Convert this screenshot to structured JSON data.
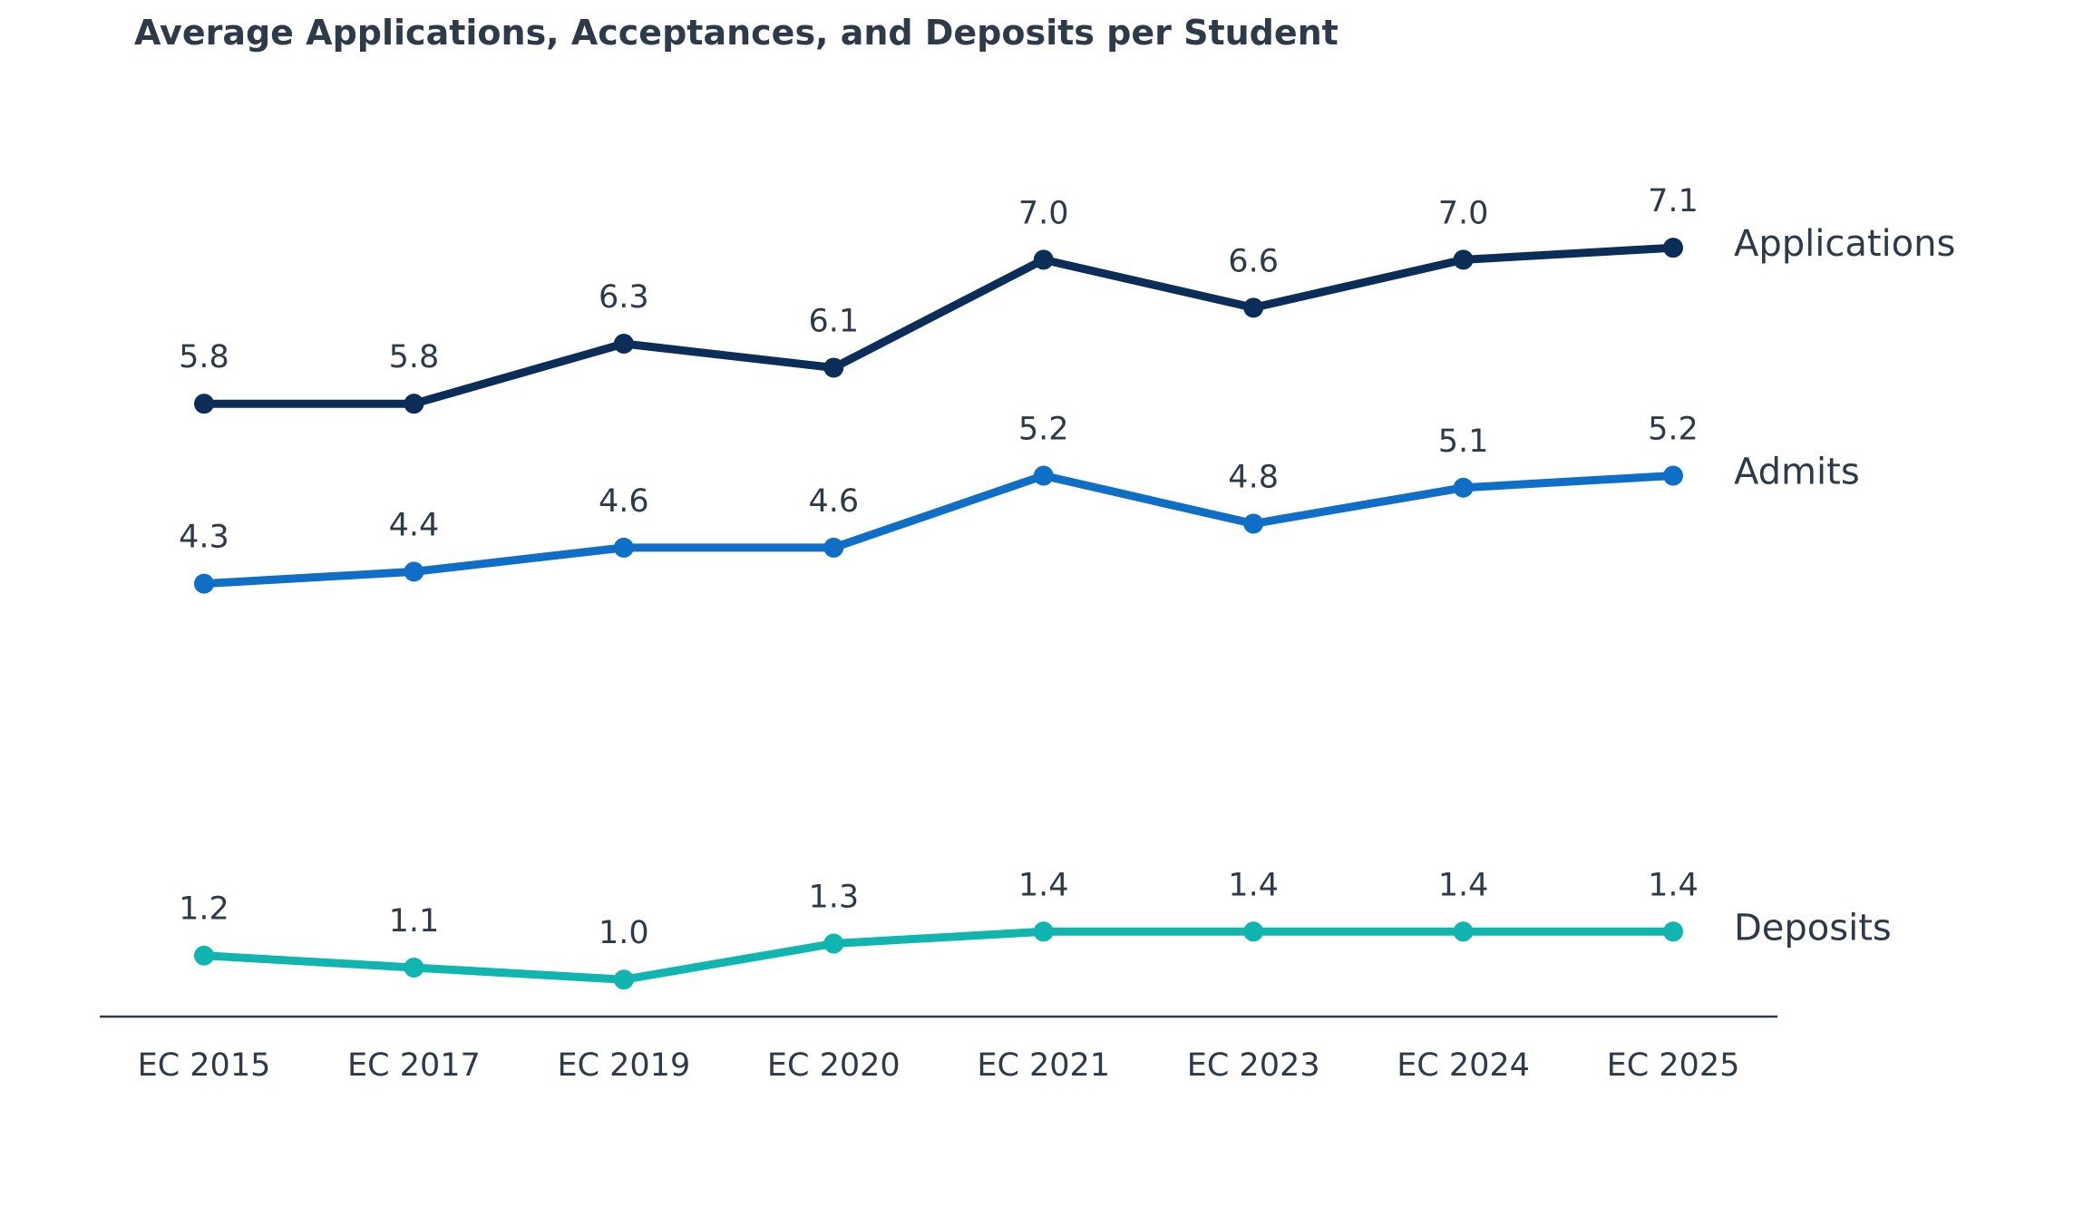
{
  "chart_data": {
    "type": "line",
    "title": "Average Applications, Acceptances, and Deposits per Student",
    "xlabel": "",
    "ylabel": "",
    "categories": [
      "EC 2015",
      "EC 2017",
      "EC 2019",
      "EC 2020",
      "EC 2021",
      "EC 2023",
      "EC 2024",
      "EC 2025"
    ],
    "ylim": [
      0,
      8
    ],
    "grid": false,
    "legend": "series labels at right end of lines",
    "series": [
      {
        "name": "Applications",
        "color": "#0b2e59",
        "values": [
          5.8,
          5.8,
          6.3,
          6.1,
          7.0,
          6.6,
          7.0,
          7.1
        ],
        "labels": [
          "5.8",
          "5.8",
          "6.3",
          "6.1",
          "7.0",
          "6.6",
          "7.0",
          "7.1"
        ]
      },
      {
        "name": "Admits",
        "color": "#0f6fc6",
        "values": [
          4.3,
          4.4,
          4.6,
          4.6,
          5.2,
          4.8,
          5.1,
          5.2
        ],
        "labels": [
          "4.3",
          "4.4",
          "4.6",
          "4.6",
          "5.2",
          "4.8",
          "5.1",
          "5.2"
        ]
      },
      {
        "name": "Deposits",
        "color": "#0fb5ae",
        "values": [
          1.2,
          1.1,
          1.0,
          1.3,
          1.4,
          1.4,
          1.4,
          1.4
        ],
        "labels": [
          "1.2",
          "1.1",
          "1.0",
          "1.3",
          "1.4",
          "1.4",
          "1.4",
          "1.4"
        ]
      }
    ]
  }
}
